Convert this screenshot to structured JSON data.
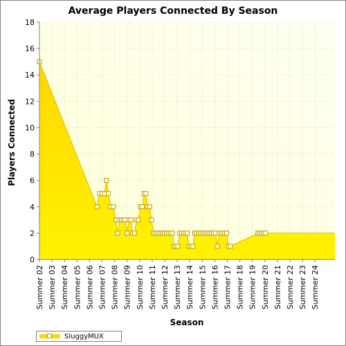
{
  "chart_data": {
    "type": "area",
    "title": "Average Players Connected By Season",
    "xlabel": "Season",
    "ylabel": "Players Connected",
    "ylim": [
      0,
      18
    ],
    "yticks": [
      0,
      2,
      4,
      6,
      8,
      10,
      12,
      14,
      16,
      18
    ],
    "grid": true,
    "legend_position": "bottom-left",
    "categories": [
      "Summer 02",
      "Summer 03",
      "Summer 04",
      "Summer 05",
      "Summer 06",
      "Summer 07",
      "Summer 08",
      "Summer 09",
      "Summer 10",
      "Summer 11",
      "Summer 12",
      "Summer 13",
      "Summer 14",
      "Summer 15",
      "Summer 16",
      "Summer 17",
      "Summer 18",
      "Summer 19",
      "Summer 20",
      "Summer 21",
      "Summer 22",
      "Summer 23",
      "Summer 24"
    ],
    "series": [
      {
        "name": "SluggyMUX",
        "color": "#ffd700",
        "points": [
          [
            0,
            15
          ],
          [
            4.6,
            4
          ],
          [
            4.8,
            5
          ],
          [
            5.0,
            5
          ],
          [
            5.2,
            5
          ],
          [
            5.35,
            6
          ],
          [
            5.5,
            5
          ],
          [
            5.7,
            4
          ],
          [
            5.9,
            4
          ],
          [
            6.1,
            3
          ],
          [
            6.25,
            2
          ],
          [
            6.4,
            3
          ],
          [
            6.55,
            3
          ],
          [
            6.7,
            3
          ],
          [
            6.85,
            3
          ],
          [
            7.0,
            2
          ],
          [
            7.15,
            3
          ],
          [
            7.3,
            3
          ],
          [
            7.45,
            2
          ],
          [
            7.6,
            2
          ],
          [
            7.75,
            3
          ],
          [
            7.9,
            3
          ],
          [
            8.05,
            4
          ],
          [
            8.2,
            4
          ],
          [
            8.35,
            5
          ],
          [
            8.5,
            5
          ],
          [
            8.65,
            4
          ],
          [
            8.8,
            4
          ],
          [
            8.95,
            3
          ],
          [
            9.1,
            2
          ],
          [
            9.25,
            2
          ],
          [
            9.4,
            2
          ],
          [
            9.55,
            2
          ],
          [
            9.7,
            2
          ],
          [
            9.85,
            2
          ],
          [
            10.0,
            2
          ],
          [
            10.15,
            2
          ],
          [
            10.3,
            2
          ],
          [
            10.45,
            2
          ],
          [
            10.6,
            2
          ],
          [
            10.75,
            1
          ],
          [
            10.9,
            1
          ],
          [
            11.05,
            1
          ],
          [
            11.2,
            2
          ],
          [
            11.35,
            2
          ],
          [
            11.5,
            2
          ],
          [
            11.65,
            2
          ],
          [
            11.8,
            2
          ],
          [
            11.95,
            1
          ],
          [
            12.1,
            1
          ],
          [
            12.25,
            1
          ],
          [
            12.4,
            2
          ],
          [
            12.55,
            2
          ],
          [
            12.7,
            2
          ],
          [
            12.85,
            2
          ],
          [
            13.0,
            2
          ],
          [
            13.15,
            2
          ],
          [
            13.3,
            2
          ],
          [
            13.45,
            2
          ],
          [
            13.6,
            2
          ],
          [
            13.75,
            2
          ],
          [
            13.9,
            2
          ],
          [
            14.05,
            2
          ],
          [
            14.2,
            1
          ],
          [
            14.35,
            2
          ],
          [
            14.5,
            2
          ],
          [
            14.65,
            2
          ],
          [
            14.8,
            2
          ],
          [
            14.95,
            2
          ],
          [
            15.1,
            1
          ],
          [
            15.25,
            1
          ],
          [
            17.45,
            2
          ],
          [
            17.6,
            2
          ],
          [
            17.75,
            2
          ],
          [
            17.9,
            2
          ],
          [
            18.05,
            2
          ]
        ]
      }
    ]
  },
  "legend": {
    "series_label": "SluggyMUX"
  }
}
